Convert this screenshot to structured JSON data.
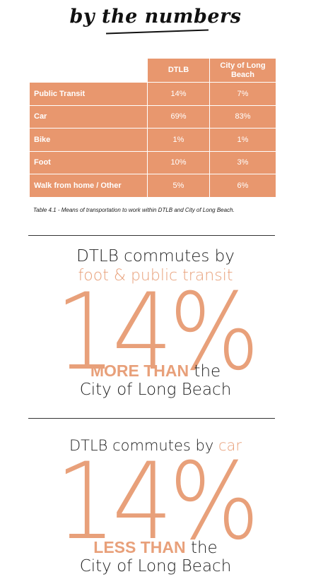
{
  "heading": "by the numbers",
  "table": {
    "columns": [
      "DTLB",
      "City of Long Beach"
    ],
    "rows": [
      {
        "label": "Public Transit",
        "dtlb": "14%",
        "city": "7%"
      },
      {
        "label": "Car",
        "dtlb": "69%",
        "city": "83%"
      },
      {
        "label": "Bike",
        "dtlb": "1%",
        "city": "1%"
      },
      {
        "label": "Foot",
        "dtlb": "10%",
        "city": "3%"
      },
      {
        "label": "Walk from home / Other",
        "dtlb": "5%",
        "city": "6%"
      }
    ],
    "caption": "Table 4.1 - Means of transportation to work within DTLB and City of Long Beach."
  },
  "stat1": {
    "line1": "DTLB commutes by",
    "line2": "foot & public transit",
    "big": "14%",
    "emph": "MORE THAN",
    "after": " the",
    "line4": "City of Long Beach"
  },
  "stat2": {
    "line1_prefix": "DTLB commutes by ",
    "line1_accent": "car",
    "big": "14%",
    "emph": "LESS THAN",
    "after": " the",
    "line4": "City of Long Beach"
  },
  "colors": {
    "accent": "#e8976e",
    "accent_light": "#e8a07a",
    "text": "#1a1a1a"
  }
}
